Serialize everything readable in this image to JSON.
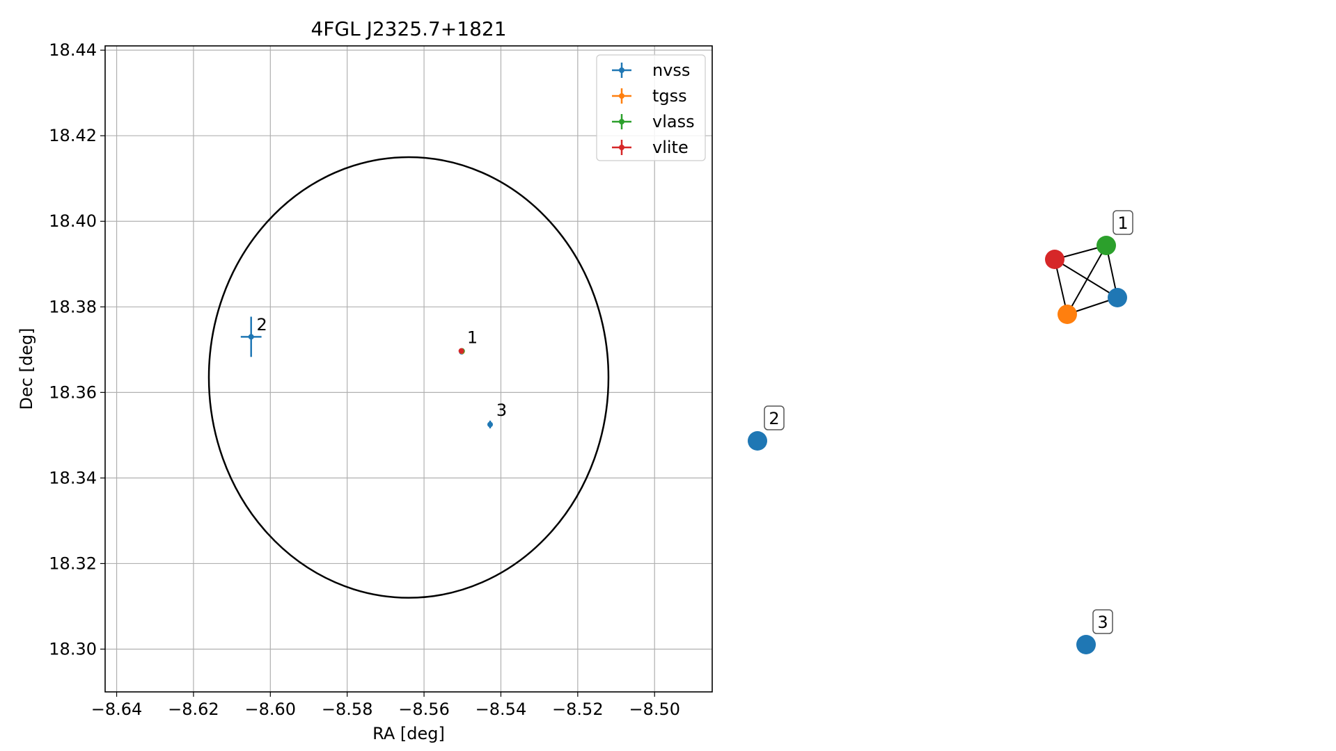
{
  "chart_data": [
    {
      "type": "scatter",
      "title": "4FGL J2325.7+1821",
      "xlabel": "RA [deg]",
      "ylabel": "Dec [deg]",
      "xlim": [
        -8.643,
        -8.485
      ],
      "ylim": [
        18.29,
        18.441
      ],
      "x_ticks": [
        -8.64,
        -8.62,
        -8.6,
        -8.58,
        -8.56,
        -8.54,
        -8.52,
        -8.5
      ],
      "x_tick_labels": [
        "−8.64",
        "−8.62",
        "−8.60",
        "−8.58",
        "−8.56",
        "−8.54",
        "−8.52",
        "−8.50"
      ],
      "y_ticks": [
        18.3,
        18.32,
        18.34,
        18.36,
        18.38,
        18.4,
        18.42,
        18.44
      ],
      "y_tick_labels": [
        "18.30",
        "18.32",
        "18.34",
        "18.36",
        "18.38",
        "18.40",
        "18.42",
        "18.44"
      ],
      "grid": true,
      "legend_position": "top-right",
      "ellipse": {
        "center": [
          -8.564,
          18.3635
        ],
        "rx": 0.052,
        "ry": 0.0515,
        "color": "#000000"
      },
      "series": [
        {
          "name": "nvss",
          "color": "#1f77b4",
          "points": [
            {
              "x": -8.605,
              "y": 18.373,
              "xerr": 0.0027,
              "yerr": 0.0047
            },
            {
              "x": -8.5428,
              "y": 18.3525,
              "xerr": 0.0006,
              "yerr": 0.0009
            },
            {
              "x": -8.5502,
              "y": 18.3695,
              "xerr": 0.0002,
              "yerr": 0.0003
            }
          ]
        },
        {
          "name": "tgss",
          "color": "#ff7f0e",
          "points": [
            {
              "x": -8.5501,
              "y": 18.3696,
              "xerr": 0.0002,
              "yerr": 0.0003
            }
          ]
        },
        {
          "name": "vlass",
          "color": "#2ca02c",
          "points": [
            {
              "x": -8.5501,
              "y": 18.3697,
              "xerr": 0.0001,
              "yerr": 0.0001
            }
          ]
        },
        {
          "name": "vlite",
          "color": "#d62728",
          "points": [
            {
              "x": -8.5503,
              "y": 18.3697,
              "xerr": 0.0002,
              "yerr": 0.0002
            }
          ]
        }
      ],
      "annotations": [
        {
          "label": "1",
          "x": -8.5488,
          "y": 18.3715
        },
        {
          "label": "2",
          "x": -8.6036,
          "y": 18.3745
        },
        {
          "label": "3",
          "x": -8.5412,
          "y": 18.3545
        }
      ]
    },
    {
      "type": "network",
      "nodes": [
        {
          "id": "n1-vlite",
          "color": "#d62728"
        },
        {
          "id": "n1-vlass",
          "color": "#2ca02c"
        },
        {
          "id": "n1-nvss",
          "color": "#1f77b4"
        },
        {
          "id": "n1-tgss",
          "color": "#ff7f0e"
        },
        {
          "id": "n2-nvss",
          "color": "#1f77b4"
        },
        {
          "id": "n3-nvss",
          "color": "#1f77b4"
        }
      ],
      "edges": [
        [
          "n1-vlite",
          "n1-vlass"
        ],
        [
          "n1-vlite",
          "n1-nvss"
        ],
        [
          "n1-vlite",
          "n1-tgss"
        ],
        [
          "n1-vlass",
          "n1-nvss"
        ],
        [
          "n1-vlass",
          "n1-tgss"
        ],
        [
          "n1-nvss",
          "n1-tgss"
        ]
      ],
      "labels": [
        {
          "text": "1",
          "node": "n1-vlass"
        },
        {
          "text": "2",
          "node": "n2-nvss"
        },
        {
          "text": "3",
          "node": "n3-nvss"
        }
      ]
    }
  ]
}
